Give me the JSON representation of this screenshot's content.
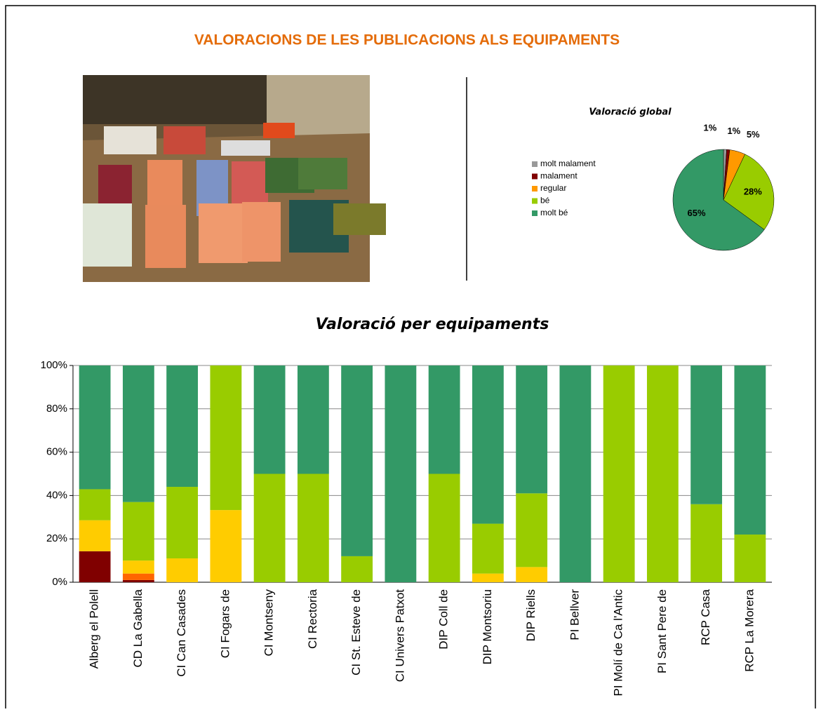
{
  "title": "VALORACIONS DE LES PUBLICACIONS ALS EQUIPAMENTS",
  "chart_data": [
    {
      "type": "pie",
      "title": "Valoració global",
      "categories": [
        "molt malament",
        "malament",
        "regular",
        "bé",
        "molt bé"
      ],
      "values": [
        1,
        1,
        5,
        28,
        65
      ],
      "value_labels": [
        "1%",
        "1%",
        "5%",
        "28%",
        "65%"
      ],
      "colors": [
        "#999999",
        "#800000",
        "#ff9900",
        "#99cc00",
        "#339966"
      ],
      "legend": "left"
    },
    {
      "type": "stacked_bar",
      "title": "Valoració  per equipaments",
      "categories": [
        "Alberg el Polell",
        "CD La Gabella",
        "CI Can Casades",
        "CI Fogars de",
        "CI Montseny",
        "CI Rectoria",
        "CI St. Esteve de",
        "CI Univers Patxot",
        "DIP Coll de",
        "DIP Montsoriu",
        "DIP Riells",
        "PI Bellver",
        "PI Molí de Ca l'Antic",
        "PI Sant Pere de",
        "RCP Casa",
        "RCP La Morera"
      ],
      "series": [
        {
          "color": "#800000",
          "values": [
            14.3,
            1,
            0,
            0,
            0,
            0,
            0,
            0,
            0,
            0,
            0,
            0,
            0,
            0,
            0,
            0
          ]
        },
        {
          "color": "#ff6600",
          "values": [
            0,
            3,
            0,
            0,
            0,
            0,
            0,
            0,
            0,
            0,
            0,
            0,
            0,
            0,
            0,
            0
          ]
        },
        {
          "color": "#ffcc00",
          "values": [
            14.3,
            6,
            11,
            33.3,
            0,
            0,
            0,
            0,
            0,
            4,
            7,
            0,
            0,
            0,
            0,
            0
          ]
        },
        {
          "color": "#99cc00",
          "values": [
            14.3,
            27,
            33,
            66.7,
            50,
            50,
            12,
            0,
            50,
            23,
            34,
            0,
            100,
            100,
            36,
            22
          ]
        },
        {
          "color": "#339966",
          "values": [
            57.1,
            63,
            56,
            0,
            50,
            50,
            88,
            100,
            50,
            73,
            59,
            100,
            0,
            0,
            64,
            78
          ]
        }
      ],
      "ylim": [
        0,
        100
      ],
      "yticks": [
        {
          "value": 0,
          "label": "0%"
        },
        {
          "value": 20,
          "label": "20%"
        },
        {
          "value": 40,
          "label": "40%"
        },
        {
          "value": 60,
          "label": "60%"
        },
        {
          "value": 80,
          "label": "80%"
        },
        {
          "value": 100,
          "label": "100%"
        }
      ],
      "grid": true
    }
  ]
}
